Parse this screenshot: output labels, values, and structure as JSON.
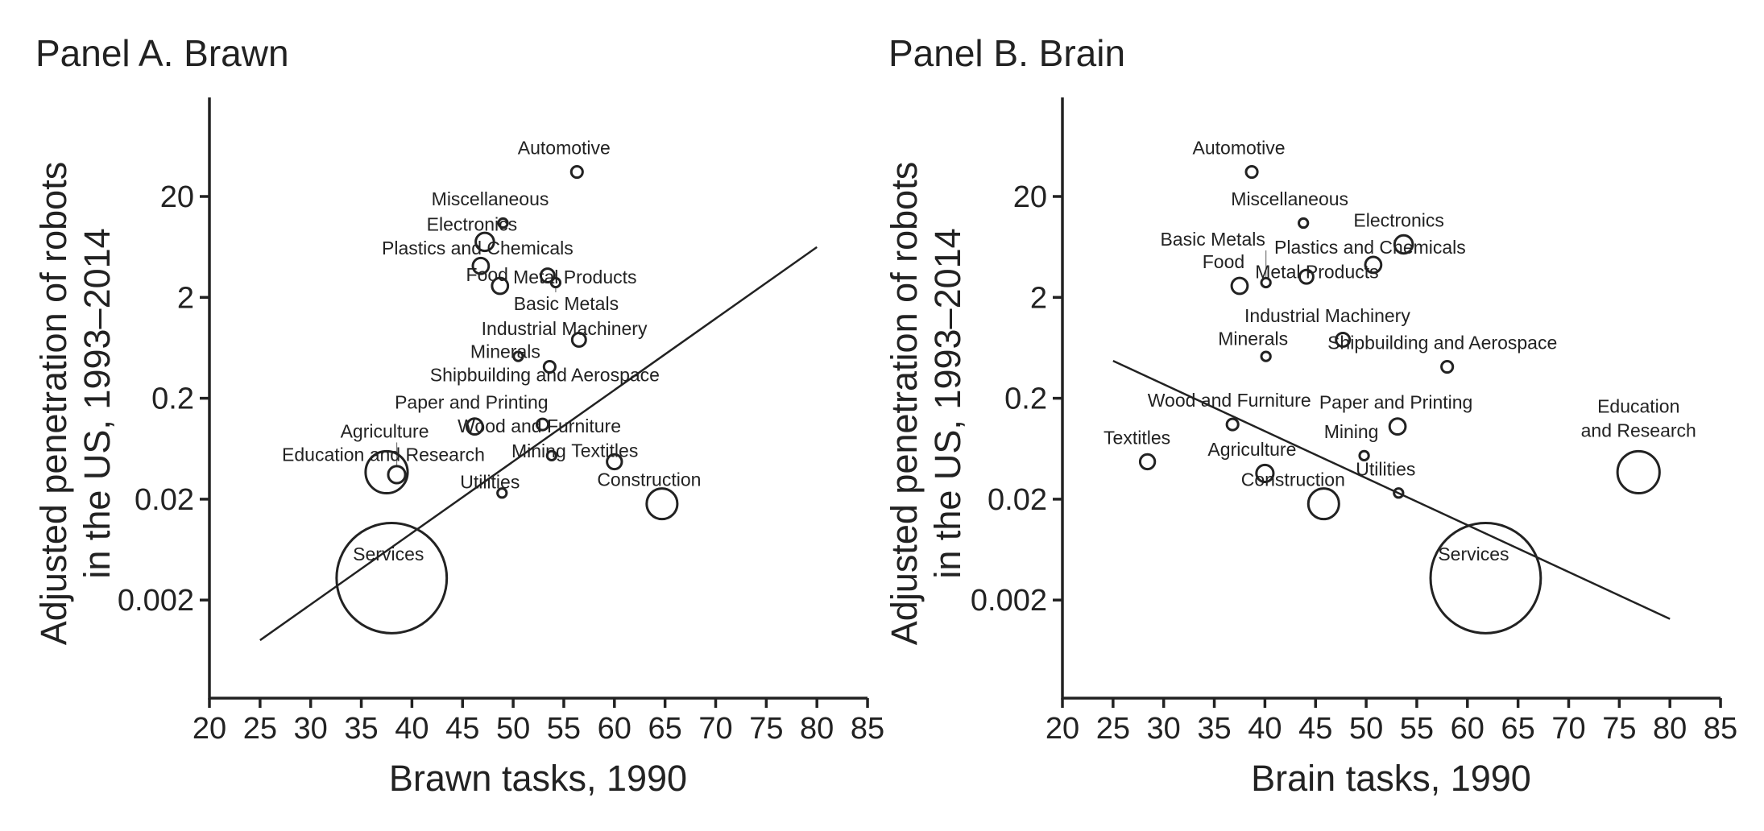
{
  "chart_data": [
    {
      "type": "scatter",
      "title": "Panel A. Brawn",
      "xlabel": "Brawn tasks, 1990",
      "ylabel": [
        "Adjusted penetration of robots",
        "in the US, 1993–2014"
      ],
      "xlim": [
        20,
        85
      ],
      "xticks": [
        "20",
        "25",
        "30",
        "35",
        "40",
        "45",
        "50",
        "55",
        "60",
        "65",
        "70",
        "75",
        "80",
        "85"
      ],
      "yscale": "log",
      "yticks": [
        "20",
        "2",
        "0.2",
        "0.02",
        "0.002"
      ],
      "points": [
        {
          "label": "Automotive",
          "x": 56.3,
          "y": 35,
          "size": 10
        },
        {
          "label": "Miscellaneous",
          "x": 49.0,
          "y": 10.9,
          "size": 8
        },
        {
          "label": "Electronics",
          "x": 47.2,
          "y": 7.1,
          "size": 16
        },
        {
          "label": "Plastics and Chemicals",
          "x": 46.8,
          "y": 4.1,
          "size": 14
        },
        {
          "label": "Food",
          "x": 48.7,
          "y": 2.6,
          "size": 14
        },
        {
          "label": "Metal Products",
          "x": 53.4,
          "y": 3.3,
          "size": 12
        },
        {
          "label": "Basic Metals",
          "x": 54.2,
          "y": 2.8,
          "size": 8
        },
        {
          "label": "Industrial Machinery",
          "x": 56.5,
          "y": 0.76,
          "size": 12
        },
        {
          "label": "Minerals",
          "x": 50.5,
          "y": 0.52,
          "size": 8
        },
        {
          "label": "Shipbuilding and Aerospace",
          "x": 53.6,
          "y": 0.41,
          "size": 10
        },
        {
          "label": "Paper and Printing",
          "x": 46.2,
          "y": 0.105,
          "size": 14
        },
        {
          "label": "Wood and Furniture",
          "x": 52.9,
          "y": 0.11,
          "size": 10
        },
        {
          "label": "Mining",
          "x": 53.8,
          "y": 0.054,
          "size": 8
        },
        {
          "label": "Textitles",
          "x": 60.0,
          "y": 0.047,
          "size": 13
        },
        {
          "label": "Education and Research",
          "x": 37.5,
          "y": 0.037,
          "size": 37
        },
        {
          "label": "Agriculture",
          "x": 38.5,
          "y": 0.035,
          "size": 15
        },
        {
          "label": "Utilities",
          "x": 48.9,
          "y": 0.023,
          "size": 8
        },
        {
          "label": "Construction",
          "x": 64.7,
          "y": 0.018,
          "size": 27
        },
        {
          "label": "Services",
          "x": 38.0,
          "y": 0.0033,
          "size": 97
        }
      ],
      "fit_line": {
        "x": [
          25,
          80
        ],
        "y": [
          0.0008,
          6.3
        ]
      }
    },
    {
      "type": "scatter",
      "title": "Panel B. Brain",
      "xlabel": "Brain tasks, 1990",
      "ylabel": [
        "Adjusted penetration of robots",
        "in the US, 1993–2014"
      ],
      "xlim": [
        20,
        85
      ],
      "xticks": [
        "20",
        "25",
        "30",
        "35",
        "40",
        "45",
        "50",
        "55",
        "60",
        "65",
        "70",
        "75",
        "80",
        "85"
      ],
      "yscale": "log",
      "yticks": [
        "20",
        "2",
        "0.2",
        "0.02",
        "0.002"
      ],
      "points": [
        {
          "label": "Automotive",
          "x": 38.7,
          "y": 35,
          "size": 10
        },
        {
          "label": "Miscellaneous",
          "x": 43.8,
          "y": 10.9,
          "size": 8
        },
        {
          "label": "Electronics",
          "x": 53.7,
          "y": 6.7,
          "size": 16
        },
        {
          "label": "Plastics and Chemicals",
          "x": 50.7,
          "y": 4.2,
          "size": 14
        },
        {
          "label": "Food",
          "x": 37.5,
          "y": 2.6,
          "size": 14
        },
        {
          "label": "Metal Products",
          "x": 44.1,
          "y": 3.2,
          "size": 12
        },
        {
          "label": "Basic Metals",
          "x": 40.1,
          "y": 2.8,
          "size": 8
        },
        {
          "label": "Industrial Machinery",
          "x": 47.7,
          "y": 0.76,
          "size": 12
        },
        {
          "label": "Minerals",
          "x": 40.1,
          "y": 0.52,
          "size": 8
        },
        {
          "label": "Shipbuilding and Aerospace",
          "x": 58.0,
          "y": 0.41,
          "size": 10
        },
        {
          "label": "Paper and Printing",
          "x": 53.1,
          "y": 0.105,
          "size": 14
        },
        {
          "label": "Wood and Furniture",
          "x": 36.8,
          "y": 0.11,
          "size": 10
        },
        {
          "label": "Mining",
          "x": 49.8,
          "y": 0.054,
          "size": 8
        },
        {
          "label": "Textitles",
          "x": 28.4,
          "y": 0.047,
          "size": 13
        },
        {
          "label": "Education and Research",
          "label_lines": [
            "Education",
            "and Research"
          ],
          "x": 76.9,
          "y": 0.037,
          "size": 37
        },
        {
          "label": "Agriculture",
          "x": 40.0,
          "y": 0.036,
          "size": 15
        },
        {
          "label": "Utilities",
          "x": 53.2,
          "y": 0.023,
          "size": 8
        },
        {
          "label": "Construction",
          "x": 45.8,
          "y": 0.018,
          "size": 27
        },
        {
          "label": "Services",
          "x": 61.8,
          "y": 0.0033,
          "size": 97
        }
      ],
      "fit_line": {
        "x": [
          25,
          80
        ],
        "y": [
          0.47,
          0.0013
        ]
      }
    }
  ]
}
